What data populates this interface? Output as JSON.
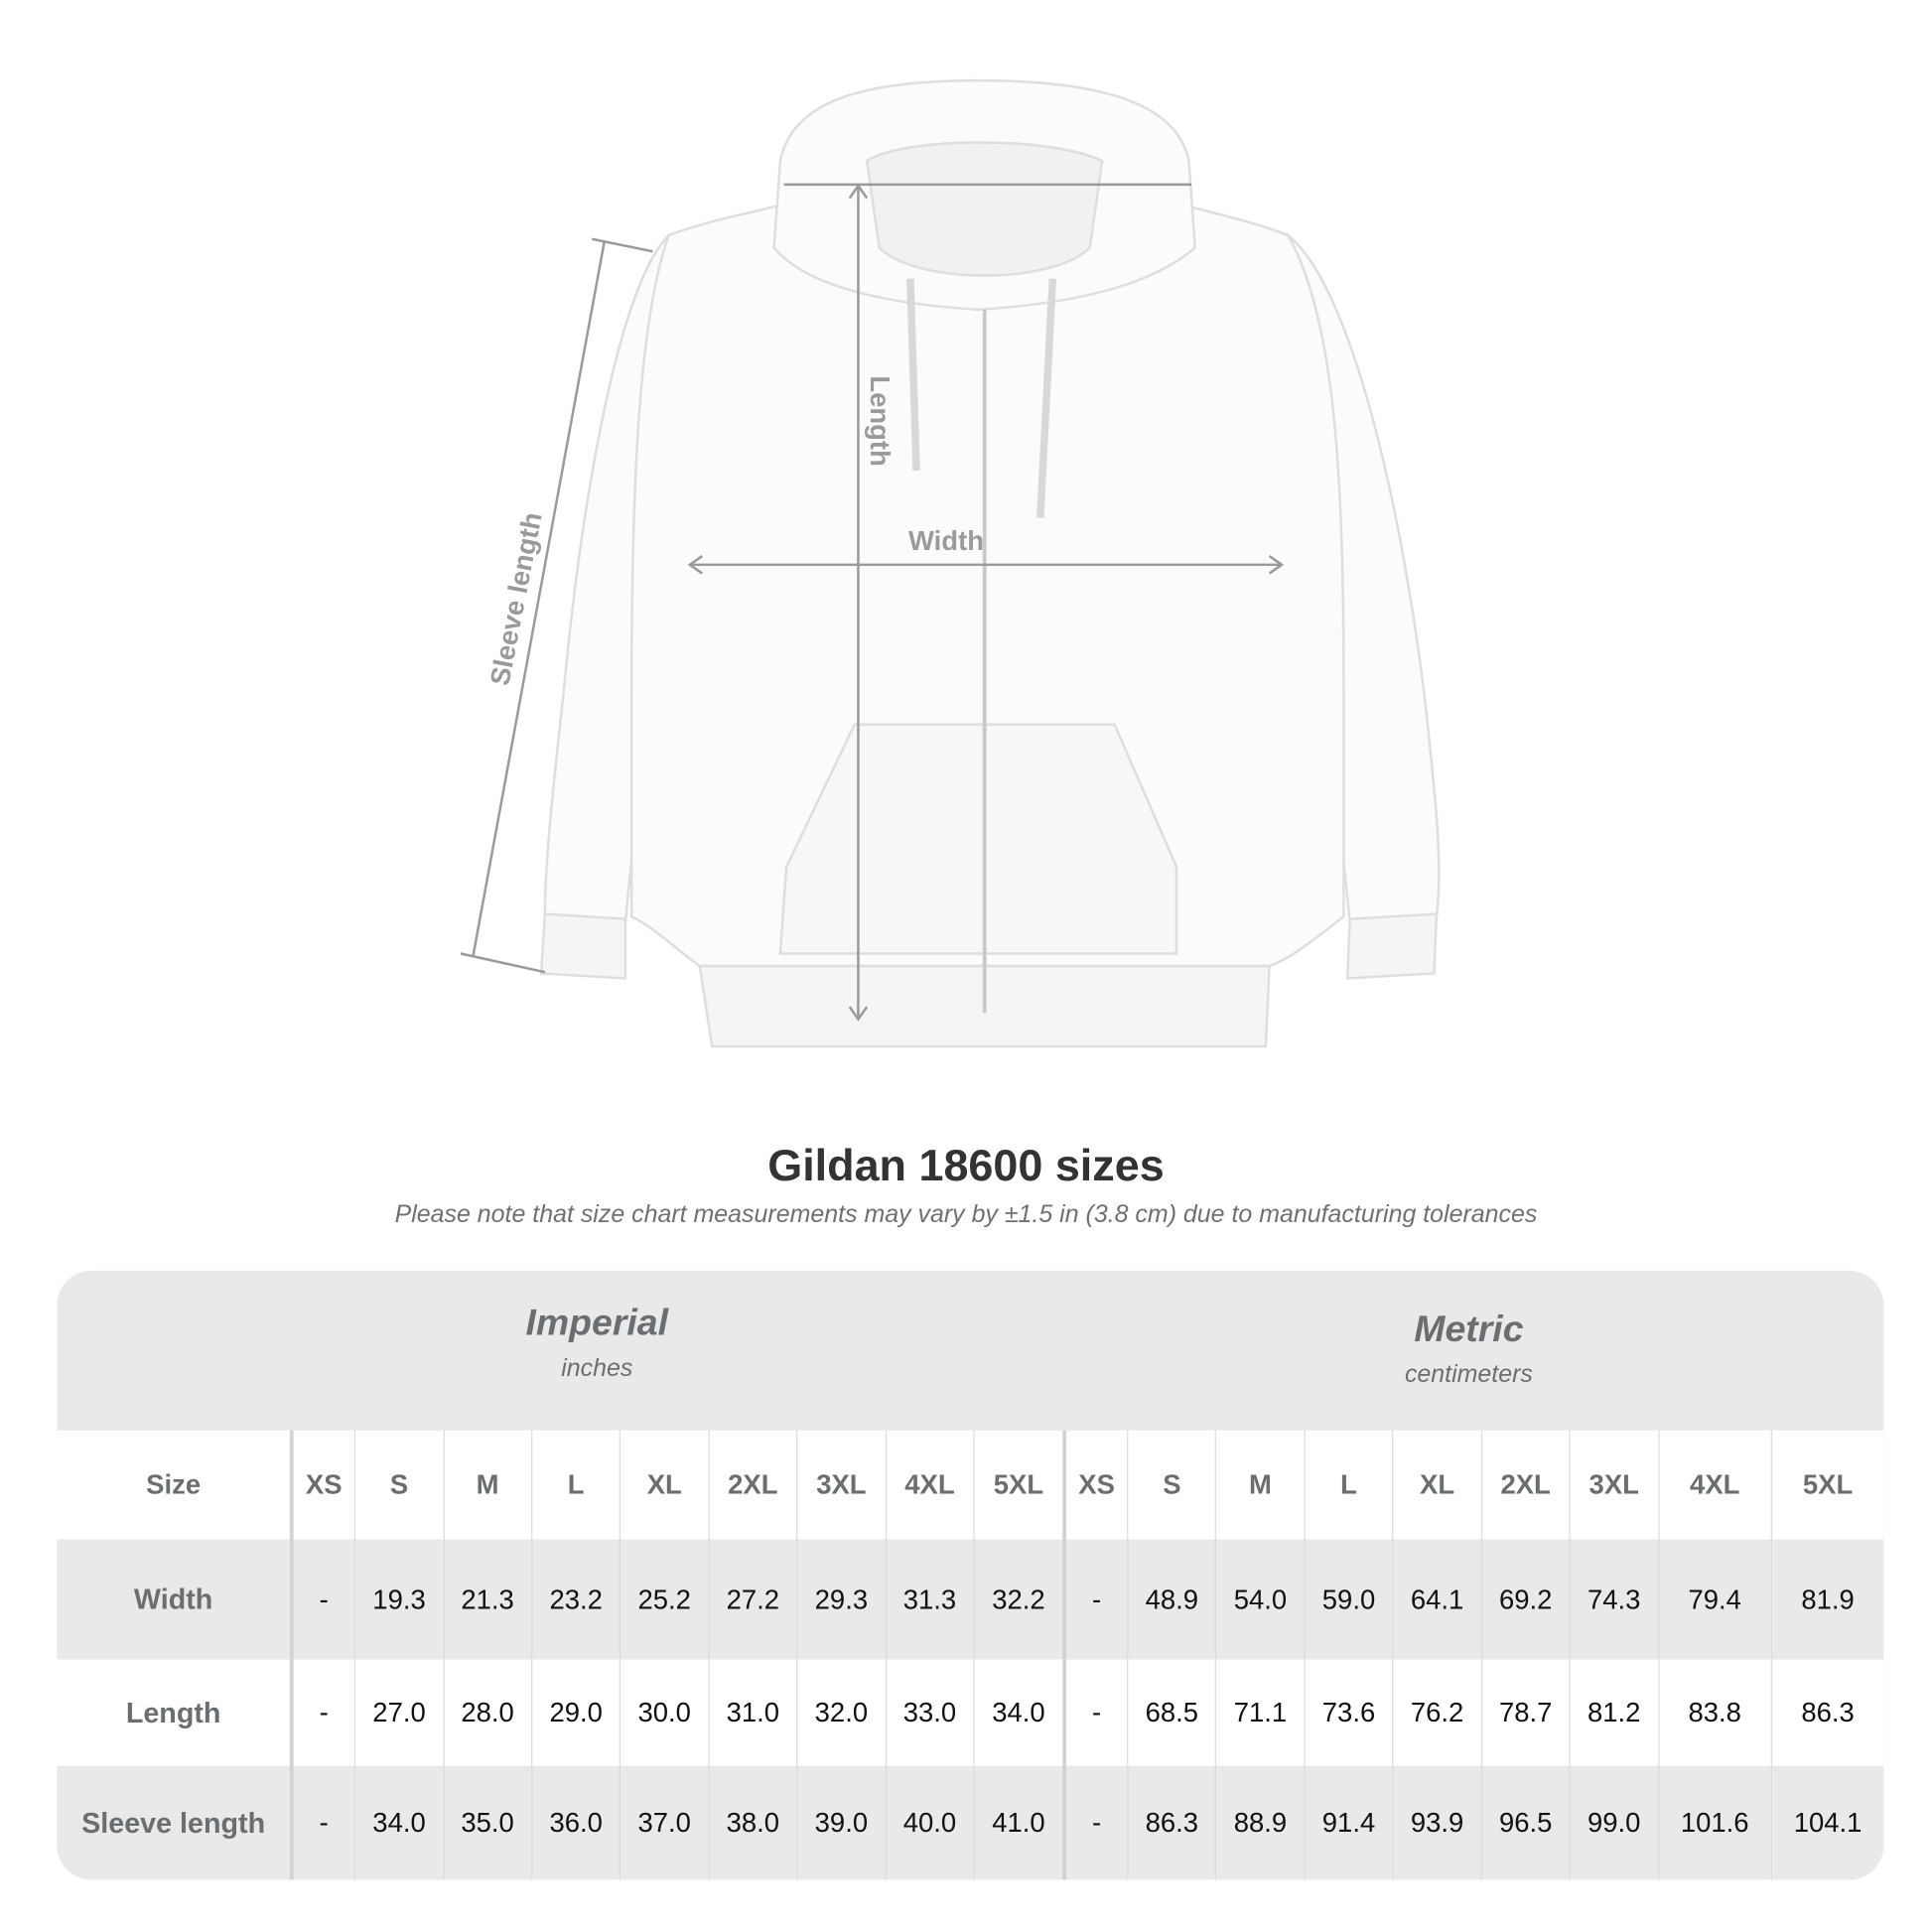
{
  "diagram": {
    "labels": {
      "length": "Length",
      "width": "Width",
      "sleeve": "Sleeve length"
    },
    "line_color": "#9a9a9a"
  },
  "header": {
    "title": "Gildan 18600 sizes",
    "note": "Please note that size chart measurements may vary by ±1.5 in (3.8 cm) due to manufacturing tolerances"
  },
  "table": {
    "imperial": {
      "name": "Imperial",
      "unit": "inches"
    },
    "metric": {
      "name": "Metric",
      "unit": "centimeters"
    },
    "size_label": "Size",
    "sizes": [
      "XS",
      "S",
      "M",
      "L",
      "XL",
      "2XL",
      "3XL",
      "4XL",
      "5XL"
    ],
    "rows": [
      {
        "label": "Width",
        "imperial": [
          "-",
          "19.3",
          "21.3",
          "23.2",
          "25.2",
          "27.2",
          "29.3",
          "31.3",
          "32.2"
        ],
        "metric": [
          "-",
          "48.9",
          "54.0",
          "59.0",
          "64.1",
          "69.2",
          "74.3",
          "79.4",
          "81.9"
        ]
      },
      {
        "label": "Length",
        "imperial": [
          "-",
          "27.0",
          "28.0",
          "29.0",
          "30.0",
          "31.0",
          "32.0",
          "33.0",
          "34.0"
        ],
        "metric": [
          "-",
          "68.5",
          "71.1",
          "73.6",
          "76.2",
          "78.7",
          "81.2",
          "83.8",
          "86.3"
        ]
      },
      {
        "label": "Sleeve length",
        "imperial": [
          "-",
          "34.0",
          "35.0",
          "36.0",
          "37.0",
          "38.0",
          "39.0",
          "40.0",
          "41.0"
        ],
        "metric": [
          "-",
          "86.3",
          "88.9",
          "91.4",
          "93.9",
          "96.5",
          "99.0",
          "101.6",
          "104.1"
        ]
      }
    ]
  }
}
